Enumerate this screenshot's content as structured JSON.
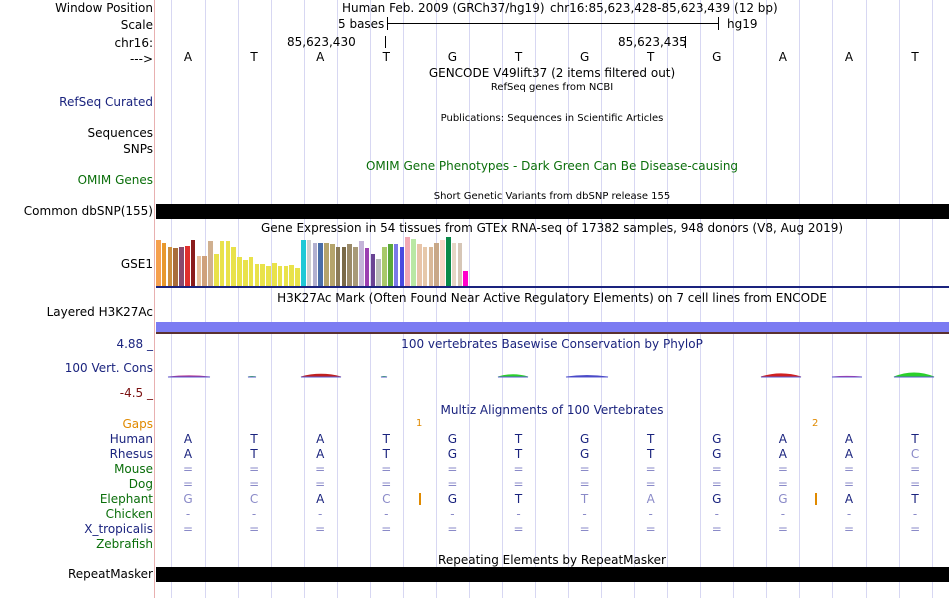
{
  "labels": {
    "window_position": "Window Position",
    "scale": "Scale",
    "chrom": "chr16:",
    "strand": "--->",
    "refseq": "RefSeq Curated",
    "sequences": "Sequences",
    "snps": "SNPs",
    "omim": "OMIM Genes",
    "dbsnp": "Common dbSNP(155)",
    "gse": "GSE1",
    "h3k27": "Layered H3K27Ac",
    "cons_max": "4.88 _",
    "cons": "100 Vert. Cons",
    "cons_min": "-4.5 _",
    "gaps": "Gaps",
    "species": [
      "Human",
      "Rhesus",
      "Mouse",
      "Dog",
      "Elephant",
      "Chicken",
      "X_tropicalis",
      "Zebrafish"
    ],
    "repeatmasker": "RepeatMasker"
  },
  "header": {
    "assembly": "Human Feb. 2009 (GRCh37/hg19)",
    "position": "chr16:85,623,428-85,623,439 (12 bp)",
    "scale_text": "5 bases",
    "scale_db": "hg19",
    "coord1": "85,623,430",
    "coord2": "85,623,435"
  },
  "bases": [
    "A",
    "T",
    "A",
    "T",
    "G",
    "T",
    "G",
    "T",
    "G",
    "A",
    "A",
    "T"
  ],
  "tracks": {
    "gencode": "GENCODE V49lift37 (2 items filtered out)",
    "refseq": "RefSeq genes from NCBI",
    "publications": "Publications: Sequences in Scientific Articles",
    "omim": "OMIM Gene Phenotypes - Dark Green Can Be Disease-causing",
    "dbsnp": "Short Genetic Variants from dbSNP release 155",
    "gtex": "Gene Expression in 54 tissues from GTEx RNA-seq of 17382 samples, 948 donors (V8, Aug 2019)",
    "h3k27": "H3K27Ac Mark (Often Found Near Active Regulatory Elements) on 7 cell lines from ENCODE",
    "phylop": "100 vertebrates Basewise Conservation by PhyloP",
    "multiz": "Multiz Alignments of 100 Vertebrates",
    "repeatmasker": "Repeating Elements by RepeatMasker"
  },
  "gaps": [
    "1",
    "2"
  ],
  "alignment": {
    "Human": [
      "A",
      "T",
      "A",
      "T",
      "G",
      "T",
      "G",
      "T",
      "G",
      "A",
      "A",
      "T"
    ],
    "Rhesus": [
      "A",
      "T",
      "A",
      "T",
      "G",
      "T",
      "G",
      "T",
      "G",
      "A",
      "A",
      "C"
    ],
    "Mouse": [
      "=",
      "=",
      "=",
      "=",
      "=",
      "=",
      "=",
      "=",
      "=",
      "=",
      "=",
      "="
    ],
    "Dog": [
      "=",
      "=",
      "=",
      "=",
      "=",
      "=",
      "=",
      "=",
      "=",
      "=",
      "=",
      "="
    ],
    "Elephant": [
      "G",
      "C",
      "A",
      "C",
      "G",
      "T",
      "T",
      "A",
      "G",
      "G",
      "A",
      "T"
    ],
    "Chicken": [
      "-",
      "-",
      "-",
      "-",
      "-",
      "-",
      "-",
      "-",
      "-",
      "-",
      "-",
      "-"
    ],
    "X_tropicalis": [
      "=",
      "=",
      "=",
      "=",
      "=",
      "=",
      "=",
      "=",
      "=",
      "=",
      "=",
      "="
    ],
    "Zebrafish": [
      "",
      "",
      "",
      "",
      "",
      "",
      "",
      "",
      "",
      "",
      "",
      ""
    ]
  },
  "gtex_bars": [
    {
      "v": 0.93,
      "c": "#f6a04d"
    },
    {
      "v": 0.87,
      "c": "#e8982c"
    },
    {
      "v": 0.8,
      "c": "#cc8f3d"
    },
    {
      "v": 0.78,
      "c": "#a96d3a"
    },
    {
      "v": 0.8,
      "c": "#8a4a6e"
    },
    {
      "v": 0.82,
      "c": "#e0302f"
    },
    {
      "v": 0.93,
      "c": "#8a1c1c"
    },
    {
      "v": 0.62,
      "c": "#e7c19d"
    },
    {
      "v": 0.62,
      "c": "#cfa17c"
    },
    {
      "v": 0.91,
      "c": "#d0b08f"
    },
    {
      "v": 0.65,
      "c": "#e9e24a"
    },
    {
      "v": 0.91,
      "c": "#e9e24a"
    },
    {
      "v": 0.91,
      "c": "#e9e24a"
    },
    {
      "v": 0.8,
      "c": "#e9e24a"
    },
    {
      "v": 0.6,
      "c": "#e9e24a"
    },
    {
      "v": 0.53,
      "c": "#e9e24a"
    },
    {
      "v": 0.6,
      "c": "#e9e24a"
    },
    {
      "v": 0.45,
      "c": "#e9e24a"
    },
    {
      "v": 0.45,
      "c": "#e9e24a"
    },
    {
      "v": 0.4,
      "c": "#e9e24a"
    },
    {
      "v": 0.47,
      "c": "#e9e24a"
    },
    {
      "v": 0.4,
      "c": "#e9e24a"
    },
    {
      "v": 0.4,
      "c": "#e9e24a"
    },
    {
      "v": 0.42,
      "c": "#e9e24a"
    },
    {
      "v": 0.36,
      "c": "#e9e24a"
    },
    {
      "v": 0.93,
      "c": "#1fc8d6"
    },
    {
      "v": 0.93,
      "c": "#cfcfcf"
    },
    {
      "v": 0.87,
      "c": "#b2b0cf"
    },
    {
      "v": 0.87,
      "c": "#4a6ea8"
    },
    {
      "v": 0.87,
      "c": "#b5a46c"
    },
    {
      "v": 0.85,
      "c": "#b5a46c"
    },
    {
      "v": 0.8,
      "c": "#8a7a58"
    },
    {
      "v": 0.8,
      "c": "#7a6a48"
    },
    {
      "v": 0.85,
      "c": "#9a8a68"
    },
    {
      "v": 0.8,
      "c": "#a89a78"
    },
    {
      "v": 0.91,
      "c": "#c4b4d8"
    },
    {
      "v": 0.78,
      "c": "#9b3fb0"
    },
    {
      "v": 0.65,
      "c": "#6a4494"
    },
    {
      "v": 0.56,
      "c": "#b9bcbc"
    },
    {
      "v": 0.8,
      "c": "#a9c96a"
    },
    {
      "v": 0.85,
      "c": "#5aa83a"
    },
    {
      "v": 0.85,
      "c": "#7a79e8"
    },
    {
      "v": 0.8,
      "c": "#4a4ae0"
    },
    {
      "v": 1.0,
      "c": "#f2a8b4"
    },
    {
      "v": 0.95,
      "c": "#b9e8a4"
    },
    {
      "v": 0.85,
      "c": "#e8c4a8"
    },
    {
      "v": 0.8,
      "c": "#e6c8aa"
    },
    {
      "v": 0.8,
      "c": "#d8b898"
    },
    {
      "v": 0.87,
      "c": "#c8a888"
    },
    {
      "v": 0.93,
      "c": "#f9d9c9"
    },
    {
      "v": 1.0,
      "c": "#0a8a4a"
    },
    {
      "v": 0.87,
      "c": "#e6d6c6"
    },
    {
      "v": 0.87,
      "c": "#d6c6b6"
    },
    {
      "v": 0.31,
      "c": "#ff00cc"
    }
  ],
  "phylop": [
    0.25,
    0.1,
    0.6,
    0.1,
    0.5,
    0.3,
    0.15,
    0.1,
    0.1,
    0.1,
    0.9,
    0.15,
    0.1,
    0.7,
    0.1
  ],
  "colors": {
    "gridline": "#d7d7f2",
    "h3k27": "#7b7bf2",
    "navy": "#1a237e",
    "omim_green": "#0a6e0a",
    "gaps_orange": "#e08a00"
  }
}
